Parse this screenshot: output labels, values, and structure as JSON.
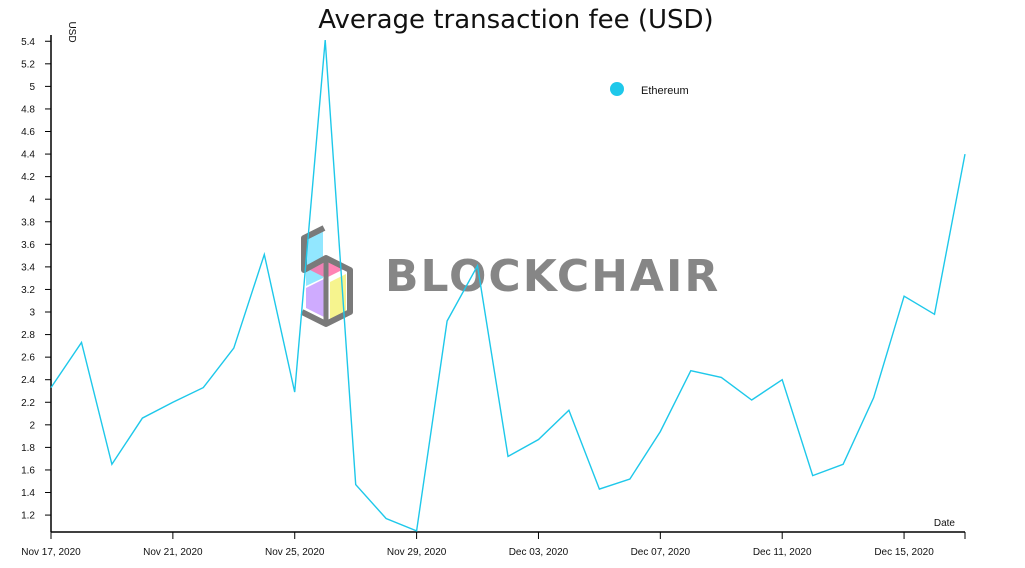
{
  "chart_data": {
    "type": "line",
    "title": "Average transaction fee (USD)",
    "xlabel": "Date",
    "ylabel": "USD",
    "ylim": [
      1.05,
      5.42
    ],
    "yticks": [
      1.2,
      1.4,
      1.6,
      1.8,
      2,
      2.2,
      2.4,
      2.6,
      2.8,
      3,
      3.2,
      3.4,
      3.6,
      3.8,
      4,
      4.2,
      4.4,
      4.6,
      4.8,
      5,
      5.2,
      5.4
    ],
    "xticks": [
      "Nov 17, 2020",
      "Nov 21, 2020",
      "Nov 25, 2020",
      "Nov 29, 2020",
      "Dec 03, 2020",
      "Dec 07, 2020",
      "Dec 11, 2020",
      "Dec 15, 2020"
    ],
    "x": [
      "2020-11-17",
      "2020-11-18",
      "2020-11-19",
      "2020-11-20",
      "2020-11-21",
      "2020-11-22",
      "2020-11-23",
      "2020-11-24",
      "2020-11-25",
      "2020-11-26",
      "2020-11-27",
      "2020-11-28",
      "2020-11-29",
      "2020-11-30",
      "2020-12-01",
      "2020-12-02",
      "2020-12-03",
      "2020-12-04",
      "2020-12-05",
      "2020-12-06",
      "2020-12-07",
      "2020-12-08",
      "2020-12-09",
      "2020-12-10",
      "2020-12-11",
      "2020-12-12",
      "2020-12-13",
      "2020-12-14",
      "2020-12-15",
      "2020-12-16",
      "2020-12-17"
    ],
    "series": [
      {
        "name": "Ethereum",
        "color": "#1ec8ea",
        "values": [
          2.33,
          2.73,
          1.65,
          2.06,
          2.2,
          2.33,
          2.68,
          3.51,
          2.29,
          5.41,
          1.47,
          1.17,
          1.06,
          2.92,
          3.41,
          1.72,
          1.87,
          2.13,
          1.43,
          1.52,
          1.94,
          2.48,
          2.42,
          2.22,
          2.4,
          1.55,
          1.65,
          2.24,
          3.14,
          2.98,
          4.4
        ]
      }
    ],
    "legend": {
      "position": "top-right",
      "entries": [
        "Ethereum"
      ]
    },
    "grid": false
  },
  "watermark": {
    "text": "BLOCKCHAIR",
    "icon": "blockchair-logo-icon"
  }
}
